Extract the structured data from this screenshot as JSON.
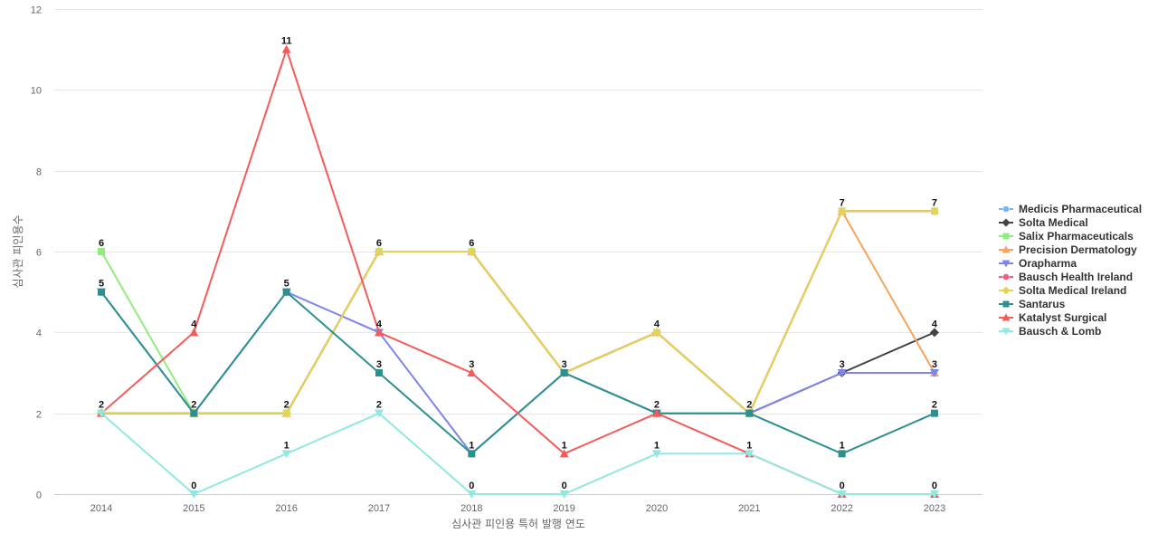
{
  "chart_data": {
    "type": "line",
    "title": "",
    "xlabel": "심사관 피인용 특허 발행 연도",
    "ylabel": "심사관 피인용수",
    "x": [
      "2014",
      "2015",
      "2016",
      "2017",
      "2018",
      "2019",
      "2020",
      "2021",
      "2022",
      "2023"
    ],
    "ylim": [
      0,
      12
    ],
    "yticks": [
      0,
      2,
      4,
      6,
      8,
      10,
      12
    ],
    "grid": true,
    "legend_position": "right",
    "series": [
      {
        "name": "Medicis Pharmaceutical",
        "color": "#7cb5ec",
        "marker": "circle",
        "values": [
          2,
          2,
          2,
          6,
          6,
          3,
          4,
          2,
          7,
          7
        ]
      },
      {
        "name": "Solta Medical",
        "color": "#434348",
        "marker": "diamond",
        "values": [
          2,
          2,
          2,
          6,
          6,
          3,
          4,
          2,
          3,
          4
        ]
      },
      {
        "name": "Salix Pharmaceuticals",
        "color": "#90ed7d",
        "marker": "square",
        "values": [
          6,
          2,
          2,
          6,
          6,
          3,
          4,
          2,
          7,
          7
        ]
      },
      {
        "name": "Precision Dermatology",
        "color": "#f7a35c",
        "marker": "triangle",
        "values": [
          2,
          2,
          2,
          6,
          6,
          3,
          4,
          2,
          7,
          3
        ]
      },
      {
        "name": "Orapharma",
        "color": "#8085e9",
        "marker": "triangle-down",
        "values": [
          5,
          2,
          5,
          4,
          1,
          3,
          2,
          2,
          3,
          3
        ]
      },
      {
        "name": "Bausch Health Ireland",
        "color": "#f15c80",
        "marker": "circle",
        "values": [
          2,
          2,
          2,
          6,
          6,
          3,
          4,
          2,
          7,
          7
        ]
      },
      {
        "name": "Solta Medical Ireland",
        "color": "#e4d354",
        "marker": "diamond",
        "values": [
          2,
          2,
          2,
          6,
          6,
          3,
          4,
          2,
          7,
          7
        ]
      },
      {
        "name": "Santarus",
        "color": "#2b908f",
        "marker": "square",
        "values": [
          5,
          2,
          5,
          3,
          1,
          3,
          2,
          2,
          1,
          2
        ]
      },
      {
        "name": "Katalyst Surgical",
        "color": "#f45b5b",
        "marker": "triangle",
        "values": [
          2,
          4,
          11,
          4,
          3,
          1,
          2,
          1,
          0,
          0
        ]
      },
      {
        "name": "Bausch & Lomb",
        "color": "#91e8e1",
        "marker": "triangle-down",
        "values": [
          2,
          0,
          1,
          2,
          0,
          0,
          1,
          1,
          0,
          0
        ]
      }
    ],
    "data_labels": [
      {
        "series": "Salix Pharmaceuticals",
        "x": "2014",
        "text": "6"
      },
      {
        "series": "Santarus",
        "x": "2014",
        "text": "5"
      },
      {
        "series": "Katalyst Surgical",
        "x": "2014",
        "text": "2"
      },
      {
        "series": "Katalyst Surgical",
        "x": "2015",
        "text": "4"
      },
      {
        "series": "Santarus",
        "x": "2015",
        "text": "2"
      },
      {
        "series": "Bausch & Lomb",
        "x": "2015",
        "text": "0"
      },
      {
        "series": "Katalyst Surgical",
        "x": "2016",
        "text": "11"
      },
      {
        "series": "Santarus",
        "x": "2016",
        "text": "5"
      },
      {
        "series": "Solta Medical Ireland",
        "x": "2016",
        "text": "2"
      },
      {
        "series": "Bausch & Lomb",
        "x": "2016",
        "text": "1"
      },
      {
        "series": "Solta Medical Ireland",
        "x": "2017",
        "text": "6"
      },
      {
        "series": "Katalyst Surgical",
        "x": "2017",
        "text": "4"
      },
      {
        "series": "Santarus",
        "x": "2017",
        "text": "3"
      },
      {
        "series": "Bausch & Lomb",
        "x": "2017",
        "text": "2"
      },
      {
        "series": "Solta Medical Ireland",
        "x": "2018",
        "text": "6"
      },
      {
        "series": "Katalyst Surgical",
        "x": "2018",
        "text": "3"
      },
      {
        "series": "Santarus",
        "x": "2018",
        "text": "1"
      },
      {
        "series": "Bausch & Lomb",
        "x": "2018",
        "text": "0"
      },
      {
        "series": "Solta Medical Ireland",
        "x": "2019",
        "text": "3"
      },
      {
        "series": "Katalyst Surgical",
        "x": "2019",
        "text": "1"
      },
      {
        "series": "Bausch & Lomb",
        "x": "2019",
        "text": "0"
      },
      {
        "series": "Solta Medical Ireland",
        "x": "2020",
        "text": "4"
      },
      {
        "series": "Santarus",
        "x": "2020",
        "text": "2"
      },
      {
        "series": "Bausch & Lomb",
        "x": "2020",
        "text": "1"
      },
      {
        "series": "Solta Medical Ireland",
        "x": "2021",
        "text": "2"
      },
      {
        "series": "Bausch & Lomb",
        "x": "2021",
        "text": "1"
      },
      {
        "series": "Solta Medical Ireland",
        "x": "2022",
        "text": "7"
      },
      {
        "series": "Orapharma",
        "x": "2022",
        "text": "3"
      },
      {
        "series": "Santarus",
        "x": "2022",
        "text": "1"
      },
      {
        "series": "Bausch & Lomb",
        "x": "2022",
        "text": "0"
      },
      {
        "series": "Solta Medical Ireland",
        "x": "2023",
        "text": "7"
      },
      {
        "series": "Solta Medical",
        "x": "2023",
        "text": "4"
      },
      {
        "series": "Orapharma",
        "x": "2023",
        "text": "3"
      },
      {
        "series": "Santarus",
        "x": "2023",
        "text": "2"
      },
      {
        "series": "Bausch & Lomb",
        "x": "2023",
        "text": "0"
      }
    ]
  }
}
